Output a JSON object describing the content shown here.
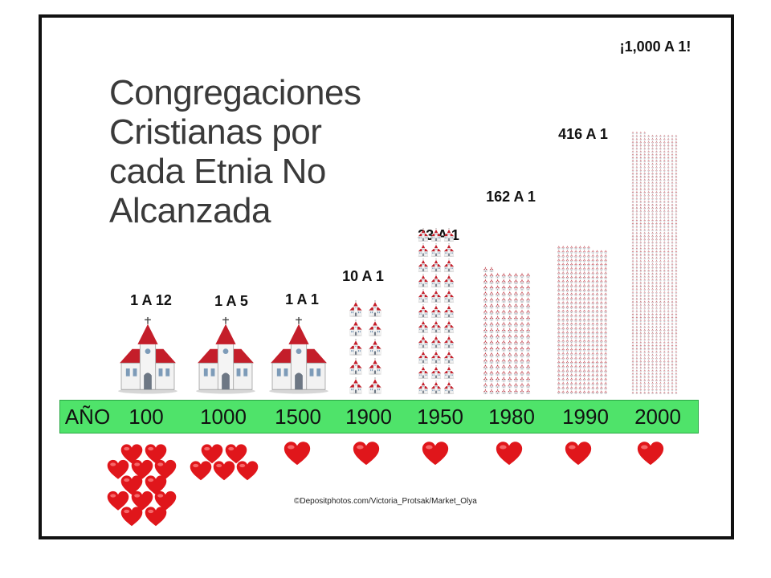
{
  "title_lines": [
    "Congregaciones",
    "Cristianas por",
    "cada Etnia No",
    "Alcanzada"
  ],
  "timeline": {
    "row_label": "AÑO",
    "years": [
      "100",
      "1000",
      "1500",
      "1900",
      "1950",
      "1980",
      "1990",
      "2000"
    ]
  },
  "credit": "©Depositphotos.com/Victoria_Protsak/Market_Olya",
  "colors": {
    "timeline_bar": "#4fe36a",
    "church_roof": "#c41e2a",
    "church_wall": "#f2f2f2",
    "heart": "#e0161b",
    "frame": "#111111",
    "title": "#3a3a3a"
  },
  "chart_data": {
    "type": "bar",
    "categories": [
      "100",
      "1000",
      "1500",
      "1900",
      "1950",
      "1980",
      "1990",
      "2000"
    ],
    "value_labels": [
      "1 A 12",
      "1 A 5",
      "1 A 1",
      "10 A 1",
      "33 A 1",
      "162 A 1",
      "416 A 1",
      "¡1,000 A 1!"
    ],
    "series": [
      {
        "values": [
          1,
          1,
          1,
          10,
          33,
          162,
          416,
          1000
        ]
      },
      {
        "values": [
          12,
          5,
          1,
          1,
          1,
          1,
          1,
          1
        ]
      }
    ],
    "mark_icons": [
      "church-icon",
      "heart-icon"
    ],
    "grid": false,
    "legend": "none"
  }
}
